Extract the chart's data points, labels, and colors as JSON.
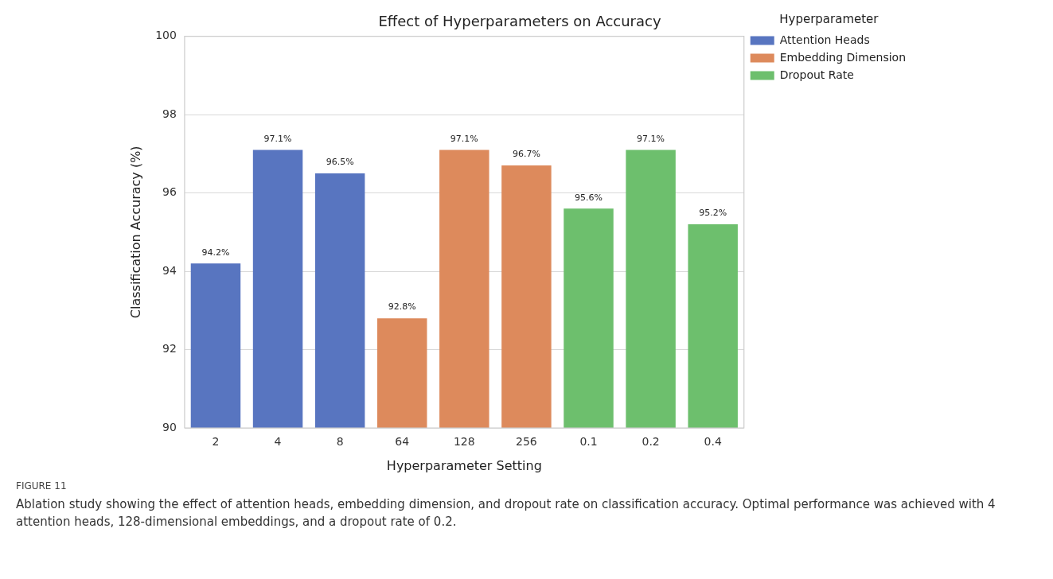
{
  "chart_data": {
    "type": "bar",
    "title": "Effect of Hyperparameters on Accuracy",
    "xlabel": "Hyperparameter Setting",
    "ylabel": "Classification Accuracy (%)",
    "legend_title": "Hyperparameter",
    "categories": [
      "2",
      "4",
      "8",
      "64",
      "128",
      "256",
      "0.1",
      "0.2",
      "0.4"
    ],
    "series": [
      {
        "name": "Attention Heads",
        "color": "#5875c0",
        "values": [
          94.2,
          97.1,
          96.5,
          null,
          null,
          null,
          null,
          null,
          null
        ],
        "value_labels": [
          "94.2%",
          "97.1%",
          "96.5%",
          null,
          null,
          null,
          null,
          null,
          null
        ]
      },
      {
        "name": "Embedding Dimension",
        "color": "#dd8a5c",
        "values": [
          null,
          null,
          null,
          92.8,
          97.1,
          96.7,
          null,
          null,
          null
        ],
        "value_labels": [
          null,
          null,
          null,
          "92.8%",
          "97.1%",
          "96.7%",
          null,
          null,
          null
        ]
      },
      {
        "name": "Dropout Rate",
        "color": "#6dbf6d",
        "values": [
          null,
          null,
          null,
          null,
          null,
          null,
          95.6,
          97.1,
          95.2
        ],
        "value_labels": [
          null,
          null,
          null,
          null,
          null,
          null,
          "95.6%",
          "97.1%",
          "95.2%"
        ]
      }
    ],
    "ylim": [
      90,
      100
    ],
    "yticks": [
      90,
      92,
      94,
      96,
      98,
      100
    ],
    "grid": "y",
    "legend": "top right",
    "annotations": [
      "FIGURE 11",
      "Ablation study showing the effect of attention heads, embedding dimension, and dropout rate on classification accuracy. Optimal performance was achieved with 4 attention heads, 128-dimensional embeddings, and a dropout rate of 0.2."
    ]
  }
}
